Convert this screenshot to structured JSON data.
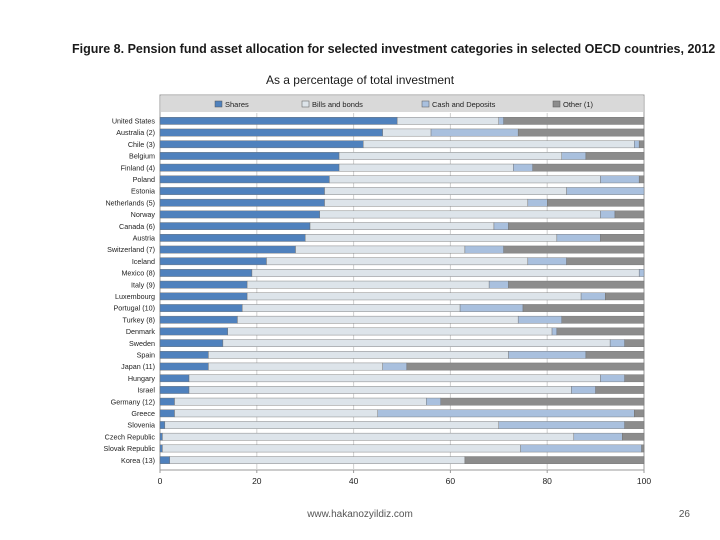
{
  "slide": {
    "footer_url": "www.hakanozyildiz.com",
    "page_number": "26"
  },
  "chart_data": {
    "type": "bar",
    "orientation": "horizontal",
    "stacked": true,
    "title": "Figure 8.  Pension fund asset allocation for selected investment categories in selected OECD countries, 2012",
    "subtitle": "As a percentage of total investment",
    "xlabel": "",
    "ylabel": "",
    "xlim": [
      0,
      100
    ],
    "x_ticks": [
      "0",
      "20",
      "40",
      "60",
      "80",
      "100"
    ],
    "grid": true,
    "legend_position": "top",
    "categories": [
      "United States",
      "Australia (2)",
      "Chile (3)",
      "Belgium",
      "Finland (4)",
      "Poland",
      "Estonia",
      "Netherlands (5)",
      "Norway",
      "Canada (6)",
      "Austria",
      "Switzerland (7)",
      "Iceland",
      "Mexico (8)",
      "Italy (9)",
      "Luxembourg",
      "Portugal (10)",
      "Turkey (8)",
      "Denmark",
      "Sweden",
      "Spain",
      "Japan (11)",
      "Hungary",
      "Israel",
      "Germany (12)",
      "Greece",
      "Slovenia",
      "Czech Republic",
      "Slovak Republic",
      "Korea (13)"
    ],
    "series": [
      {
        "name": "Shares",
        "color": "#4f81bd",
        "values": [
          49,
          46,
          42,
          37,
          37,
          35,
          34,
          34,
          33,
          31,
          30,
          28,
          22,
          19,
          18,
          18,
          17,
          16,
          14,
          13,
          10,
          10,
          6,
          6,
          3,
          3,
          1,
          0.5,
          0.5,
          2
        ]
      },
      {
        "name": "Bills and bonds",
        "color": "#dde4ea",
        "values": [
          21,
          10,
          56,
          46,
          36,
          56,
          50,
          42,
          58,
          38,
          52,
          35,
          54,
          80,
          50,
          69,
          45,
          58,
          67,
          80,
          62,
          36,
          85,
          79,
          52,
          42,
          69,
          85,
          74,
          61
        ]
      },
      {
        "name": "Cash and Deposits",
        "color": "#a9c0de",
        "values": [
          1,
          18,
          1,
          5,
          4,
          8,
          16,
          4,
          3,
          3,
          9,
          8,
          8,
          1,
          4,
          5,
          13,
          9,
          1,
          3,
          16,
          5,
          5,
          5,
          3,
          53,
          26,
          10,
          25,
          0
        ]
      },
      {
        "name": "Other (1)",
        "color": "#8c8c8c",
        "values": [
          29,
          26,
          1,
          12,
          23,
          1,
          0,
          20,
          6,
          28,
          9,
          29,
          16,
          0,
          28,
          8,
          25,
          17,
          18,
          4,
          12,
          49,
          4,
          10,
          42,
          2,
          4,
          4.5,
          0.5,
          37
        ]
      }
    ]
  }
}
